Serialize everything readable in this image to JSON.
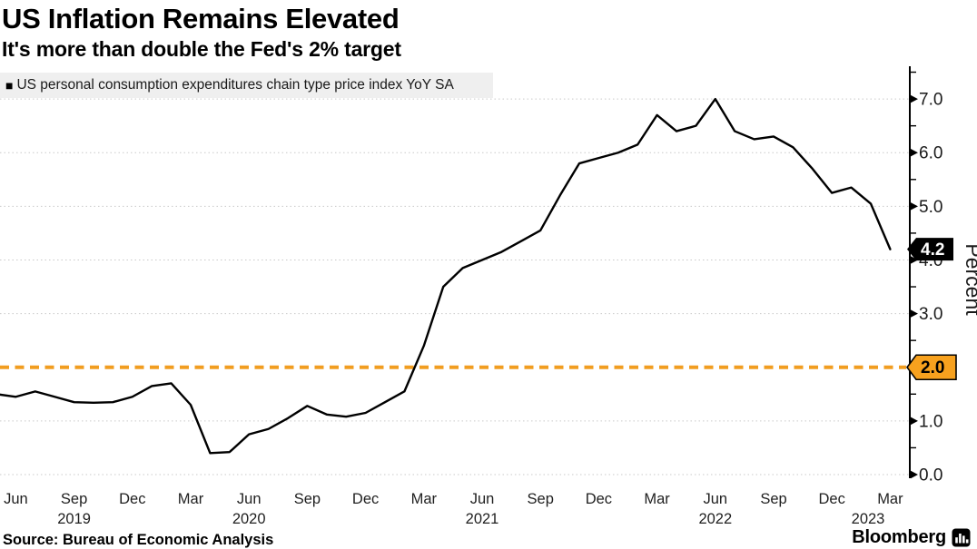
{
  "header": {
    "title": "US Inflation Remains Elevated",
    "subtitle": "It's more than double the Fed's 2% target"
  },
  "legend": {
    "marker": "■",
    "label": "US personal consumption expenditures chain type price index YoY SA"
  },
  "footer": {
    "source_label": "Source: Bureau of Economic Analysis",
    "brand": "Bloomberg",
    "brand_icon": "bloomberg-terminal-bars-icon"
  },
  "colors": {
    "series_line": "#000000",
    "target_orange": "#F19D20",
    "target_tag_fill": "#F7A11E",
    "target_tag_border": "#000000",
    "target_tag_text": "#000000",
    "last_tag_fill": "#000000",
    "last_tag_text": "#ffffff",
    "grid": "#c9c9c9",
    "axis": "#000000",
    "tick_text": "#1a1a1a",
    "legend_bg": "#efefef"
  },
  "chart_data": {
    "type": "line",
    "title": "US Inflation Remains Elevated",
    "subtitle": "It's more than double the Fed's 2% target",
    "ylabel": "Percent",
    "ylim": [
      0,
      7.5
    ],
    "grid": "horizontal dotted lines at integer values",
    "legend_position": "top-left",
    "x": [
      "May 2019",
      "Jun 2019",
      "Jul 2019",
      "Aug 2019",
      "Sep 2019",
      "Oct 2019",
      "Nov 2019",
      "Dec 2019",
      "Jan 2020",
      "Feb 2020",
      "Mar 2020",
      "Apr 2020",
      "May 2020",
      "Jun 2020",
      "Jul 2020",
      "Aug 2020",
      "Sep 2020",
      "Oct 2020",
      "Nov 2020",
      "Dec 2020",
      "Jan 2021",
      "Feb 2021",
      "Mar 2021",
      "Apr 2021",
      "May 2021",
      "Jun 2021",
      "Jul 2021",
      "Aug 2021",
      "Sep 2021",
      "Oct 2021",
      "Nov 2021",
      "Dec 2021",
      "Jan 2022",
      "Feb 2022",
      "Mar 2022",
      "Apr 2022",
      "May 2022",
      "Jun 2022",
      "Jul 2022",
      "Aug 2022",
      "Sep 2022",
      "Oct 2022",
      "Nov 2022",
      "Dec 2022",
      "Jan 2023",
      "Feb 2023",
      "Mar 2023"
    ],
    "series": [
      {
        "name": "US personal consumption expenditures chain type price index YoY SA",
        "color": "#000000",
        "values": [
          1.5,
          1.45,
          1.55,
          1.45,
          1.35,
          1.34,
          1.35,
          1.45,
          1.65,
          1.7,
          1.3,
          0.4,
          0.42,
          0.75,
          0.85,
          1.05,
          1.28,
          1.12,
          1.08,
          1.15,
          1.35,
          1.55,
          2.4,
          3.5,
          3.85,
          4.0,
          4.15,
          4.35,
          4.55,
          5.2,
          5.8,
          5.9,
          6.0,
          6.15,
          6.7,
          6.4,
          6.5,
          7.0,
          6.4,
          6.25,
          6.3,
          6.1,
          5.7,
          5.25,
          5.35,
          5.05,
          4.2
        ]
      }
    ],
    "yticks": [
      {
        "value": 0,
        "label": "0.0"
      },
      {
        "value": 1,
        "label": "1.0"
      },
      {
        "value": 2,
        "label": "2.0"
      },
      {
        "value": 3,
        "label": "3.0"
      },
      {
        "value": 4,
        "label": "4.0"
      },
      {
        "value": 5,
        "label": "5.0"
      },
      {
        "value": 6,
        "label": "6.0"
      },
      {
        "value": 7,
        "label": "7.0"
      }
    ],
    "y_minor_ticks": [
      0.5,
      1.5,
      2.5,
      3.5,
      4.5,
      5.5,
      6.5,
      7.5
    ],
    "xticks": [
      {
        "index": 1,
        "label": "Jun"
      },
      {
        "index": 4,
        "label": "Sep"
      },
      {
        "index": 7,
        "label": "Dec"
      },
      {
        "index": 10,
        "label": "Mar"
      },
      {
        "index": 13,
        "label": "Jun"
      },
      {
        "index": 16,
        "label": "Sep"
      },
      {
        "index": 19,
        "label": "Dec"
      },
      {
        "index": 22,
        "label": "Mar"
      },
      {
        "index": 25,
        "label": "Jun"
      },
      {
        "index": 28,
        "label": "Sep"
      },
      {
        "index": 31,
        "label": "Dec"
      },
      {
        "index": 34,
        "label": "Mar"
      },
      {
        "index": 37,
        "label": "Jun"
      },
      {
        "index": 40,
        "label": "Sep"
      },
      {
        "index": 43,
        "label": "Dec"
      },
      {
        "index": 46,
        "label": "Mar"
      }
    ],
    "year_labels": [
      {
        "index": 4,
        "label": "2019"
      },
      {
        "index": 13,
        "label": "2020"
      },
      {
        "index": 25,
        "label": "2021"
      },
      {
        "index": 37,
        "label": "2022"
      },
      {
        "index": 46,
        "label": "2023"
      }
    ],
    "target_line": {
      "value": 2.0,
      "label": "2.0",
      "style": "dashed"
    },
    "last_value_tag": {
      "value": 4.2,
      "label": "4.2"
    }
  }
}
